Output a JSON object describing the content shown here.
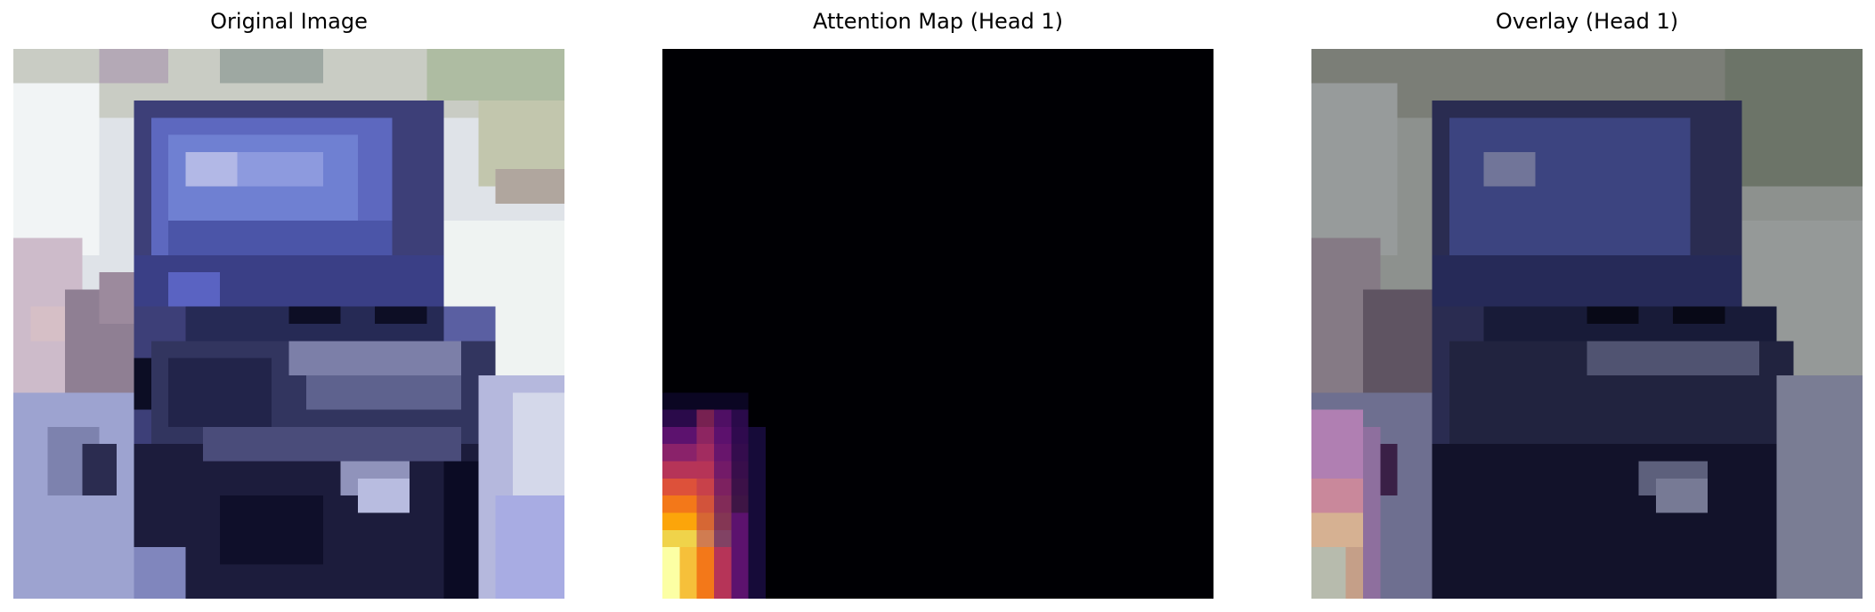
{
  "figure": {
    "panels": [
      {
        "title": "Original Image"
      },
      {
        "title": "Attention Map (Head 1)"
      },
      {
        "title": "Overlay (Head 1)"
      }
    ],
    "attention": {
      "background": "#000004",
      "colormap": "inferno",
      "hot_region": "bottom-left"
    }
  }
}
